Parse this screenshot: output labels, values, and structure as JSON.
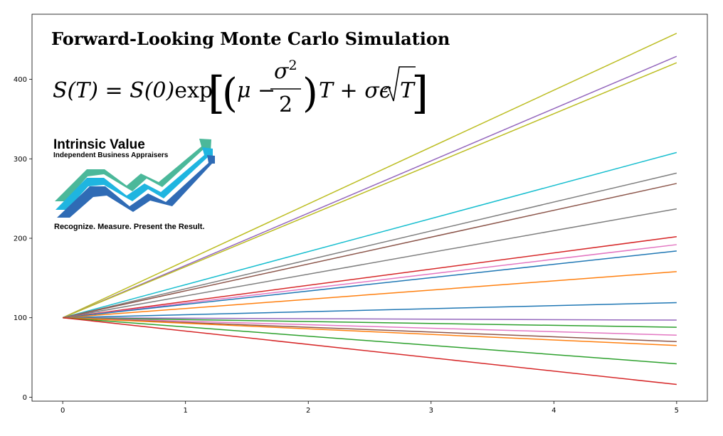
{
  "chart_data": {
    "type": "line",
    "title": "Forward-Looking Monte Carlo Simulation",
    "formula": "S(T) = S(0)exp[(μ − σ²/2)T + σϵ√T]",
    "xlabel": "",
    "ylabel": "",
    "xlim": [
      -0.25,
      5.25
    ],
    "ylim": [
      -5,
      482
    ],
    "xticks": [
      0,
      1,
      2,
      3,
      4,
      5
    ],
    "yticks": [
      0,
      100,
      200,
      300,
      400
    ],
    "grid": false,
    "legend": "none",
    "x": [
      0,
      5
    ],
    "series": [
      {
        "color": "#bcbd22",
        "values": [
          100,
          458
        ]
      },
      {
        "color": "#9467bd",
        "values": [
          100,
          429
        ]
      },
      {
        "color": "#bcbd22",
        "values": [
          100,
          421
        ]
      },
      {
        "color": "#17becf",
        "values": [
          100,
          308
        ]
      },
      {
        "color": "#7f7f7f",
        "values": [
          100,
          282
        ]
      },
      {
        "color": "#8c564b",
        "values": [
          100,
          269
        ]
      },
      {
        "color": "#7f7f7f",
        "values": [
          100,
          237
        ]
      },
      {
        "color": "#d62728",
        "values": [
          100,
          202
        ]
      },
      {
        "color": "#e377c2",
        "values": [
          100,
          192
        ]
      },
      {
        "color": "#1f77b4",
        "values": [
          100,
          184
        ]
      },
      {
        "color": "#ff7f0e",
        "values": [
          100,
          158
        ]
      },
      {
        "color": "#1f77b4",
        "values": [
          100,
          119
        ]
      },
      {
        "color": "#9467bd",
        "values": [
          100,
          97
        ]
      },
      {
        "color": "#2ca02c",
        "values": [
          100,
          88
        ]
      },
      {
        "color": "#e377c2",
        "values": [
          100,
          78
        ]
      },
      {
        "color": "#8c564b",
        "values": [
          100,
          70
        ]
      },
      {
        "color": "#ff7f0e",
        "values": [
          100,
          65
        ]
      },
      {
        "color": "#2ca02c",
        "values": [
          100,
          42
        ]
      },
      {
        "color": "#d62728",
        "values": [
          100,
          16
        ]
      }
    ]
  },
  "logo": {
    "name": "Intrinsic Value",
    "subtitle": "Independent Business Appraisers",
    "tagline": "Recognize. Measure. Present the Result.",
    "colors": [
      "#4bb89a",
      "#1fb5e0",
      "#2f6bb5"
    ]
  }
}
